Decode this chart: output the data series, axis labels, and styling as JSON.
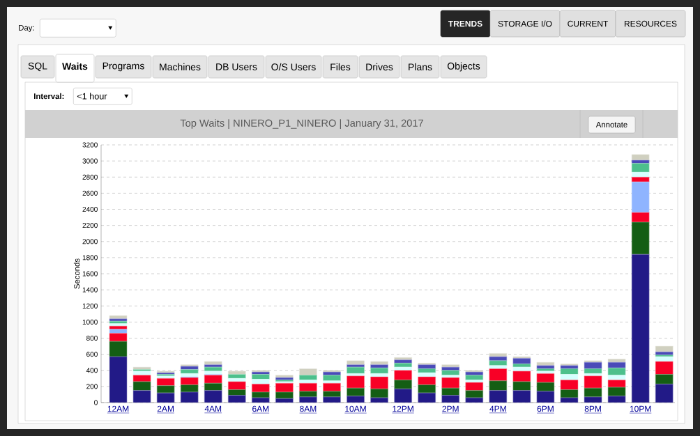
{
  "chart_data": {
    "type": "bar",
    "stacked": true,
    "title": "Top Waits  |  NINERO_P1_NINERO  |  January 31, 2017",
    "ylabel": "Seconds",
    "categories": [
      "12AM",
      null,
      "2AM",
      null,
      "4AM",
      null,
      "6AM",
      null,
      "8AM",
      null,
      "10AM",
      null,
      "12PM",
      null,
      "2PM",
      null,
      "4PM",
      null,
      "6PM",
      null,
      "8PM",
      null,
      "10PM",
      null
    ],
    "series": [
      {
        "color": "#221a87",
        "values": [
          570,
          150,
          120,
          130,
          150,
          90,
          60,
          50,
          70,
          70,
          80,
          60,
          170,
          120,
          90,
          60,
          150,
          150,
          140,
          60,
          70,
          80,
          1840,
          230
        ]
      },
      {
        "color": "#145e14",
        "values": [
          190,
          110,
          90,
          90,
          90,
          70,
          70,
          80,
          70,
          70,
          100,
          110,
          110,
          100,
          90,
          90,
          120,
          110,
          110,
          100,
          110,
          110,
          400,
          120
        ]
      },
      {
        "color": "#f80026",
        "values": [
          100,
          80,
          90,
          90,
          100,
          100,
          100,
          110,
          100,
          100,
          150,
          150,
          120,
          100,
          130,
          100,
          150,
          130,
          110,
          120,
          150,
          90,
          120,
          160
        ]
      },
      {
        "color": "#8fb4ff",
        "values": [
          50,
          0,
          0,
          10,
          10,
          0,
          0,
          0,
          0,
          0,
          0,
          0,
          0,
          0,
          0,
          0,
          0,
          0,
          0,
          0,
          0,
          0,
          380,
          0
        ]
      },
      {
        "color": "#f80026",
        "values": [
          40,
          0,
          0,
          0,
          0,
          0,
          0,
          0,
          0,
          0,
          0,
          0,
          0,
          0,
          0,
          0,
          0,
          0,
          0,
          0,
          0,
          0,
          60,
          0
        ]
      },
      {
        "color": "#d6ffff",
        "values": [
          30,
          50,
          30,
          40,
          40,
          40,
          60,
          20,
          40,
          30,
          30,
          40,
          40,
          50,
          30,
          30,
          40,
          50,
          30,
          70,
          30,
          60,
          60,
          60
        ]
      },
      {
        "color": "#4cc08c",
        "values": [
          30,
          20,
          20,
          50,
          50,
          50,
          60,
          20,
          60,
          70,
          80,
          70,
          50,
          50,
          60,
          60,
          60,
          40,
          30,
          70,
          60,
          90,
          110,
          20
        ]
      },
      {
        "color": "#4a4ab8",
        "values": [
          30,
          0,
          20,
          40,
          30,
          0,
          30,
          30,
          0,
          40,
          30,
          40,
          40,
          50,
          40,
          40,
          50,
          70,
          40,
          40,
          80,
          70,
          40,
          40
        ]
      },
      {
        "color": "#d0d0c0",
        "values": [
          40,
          30,
          20,
          20,
          40,
          40,
          20,
          30,
          80,
          20,
          50,
          40,
          30,
          20,
          30,
          20,
          40,
          20,
          40,
          20,
          20,
          40,
          70,
          70
        ]
      }
    ],
    "ylim": [
      0,
      3200
    ],
    "yticks": [
      0,
      200,
      400,
      600,
      800,
      1000,
      1200,
      1400,
      1600,
      1800,
      2000,
      2200,
      2400,
      2600,
      2800,
      3000,
      3200
    ],
    "grid": "y",
    "annotations": [
      "Day:",
      "TRENDS",
      "STORAGE I/O",
      "CURRENT",
      "RESOURCES",
      "SQL",
      "Waits",
      "Programs",
      "Machines",
      "DB Users",
      "O/S Users",
      "Files",
      "Drives",
      "Plans",
      "Objects",
      "Interval:",
      "<1 hour",
      "Annotate"
    ]
  }
}
